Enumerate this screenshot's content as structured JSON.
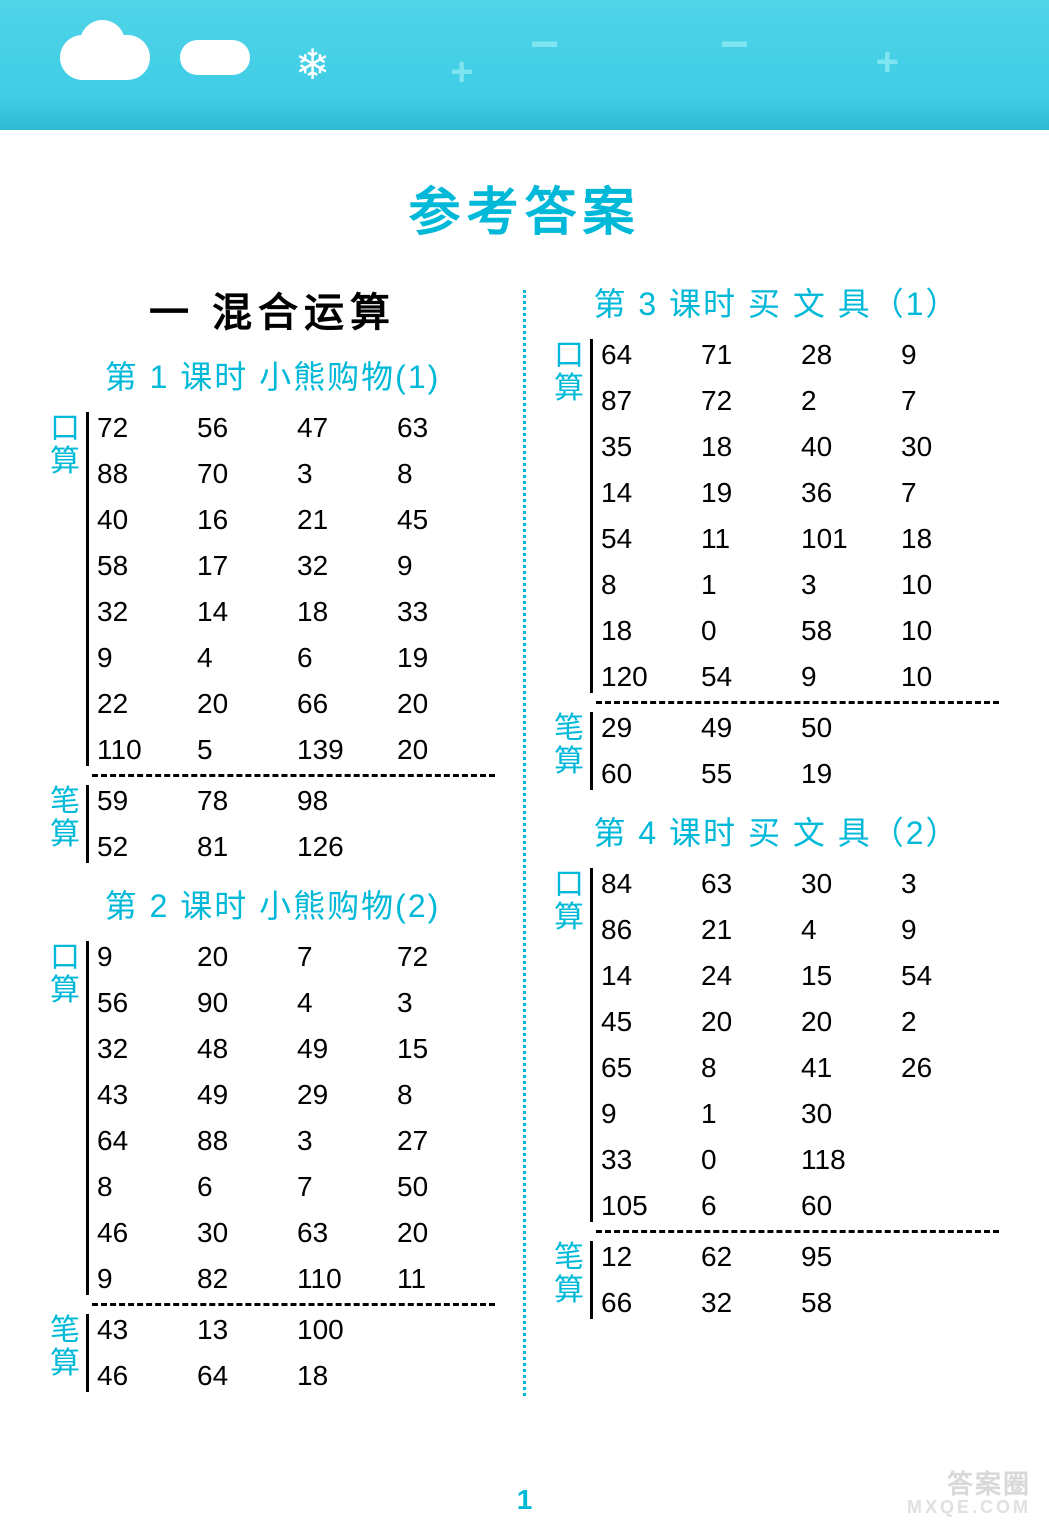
{
  "colors": {
    "accent": "#00b8d8",
    "banner_bg_top": "#4fd4e8",
    "banner_bg_bottom": "#2fb8d2",
    "text": "#000000",
    "watermark": "#d8d8d8",
    "background": "#ffffff"
  },
  "typography": {
    "title_fontsize": 52,
    "lesson_fontsize": 32,
    "cell_fontsize": 28,
    "side_label_fontsize": 30
  },
  "page": {
    "title": "参考答案",
    "unit_title": "一   混合运算",
    "page_number": "1",
    "watermark_main": "答案圈",
    "watermark_sub": "MXQE.COM"
  },
  "labels": {
    "kousuan": "口算",
    "bisuan": "笔算"
  },
  "lessons": {
    "l1": {
      "title": "第 1 课时   小熊购物(1)",
      "kousuan": [
        [
          "72",
          "56",
          "47",
          "63"
        ],
        [
          "88",
          "70",
          "3",
          "8"
        ],
        [
          "40",
          "16",
          "21",
          "45"
        ],
        [
          "58",
          "17",
          "32",
          "9"
        ],
        [
          "32",
          "14",
          "18",
          "33"
        ],
        [
          "9",
          "4",
          "6",
          "19"
        ],
        [
          "22",
          "20",
          "66",
          "20"
        ],
        [
          "110",
          "5",
          "139",
          "20"
        ]
      ],
      "bisuan": [
        [
          "59",
          "78",
          "98",
          ""
        ],
        [
          "52",
          "81",
          "126",
          ""
        ]
      ]
    },
    "l2": {
      "title": "第 2 课时   小熊购物(2)",
      "kousuan": [
        [
          "9",
          "20",
          "7",
          "72"
        ],
        [
          "56",
          "90",
          "4",
          "3"
        ],
        [
          "32",
          "48",
          "49",
          "15"
        ],
        [
          "43",
          "49",
          "29",
          "8"
        ],
        [
          "64",
          "88",
          "3",
          "27"
        ],
        [
          "8",
          "6",
          "7",
          "50"
        ],
        [
          "46",
          "30",
          "63",
          "20"
        ],
        [
          "9",
          "82",
          "110",
          "11"
        ]
      ],
      "bisuan": [
        [
          "43",
          "13",
          "100",
          ""
        ],
        [
          "46",
          "64",
          "18",
          ""
        ]
      ]
    },
    "l3": {
      "title": "第 3 课时   买 文 具（1）",
      "kousuan": [
        [
          "64",
          "71",
          "28",
          "9"
        ],
        [
          "87",
          "72",
          "2",
          "7"
        ],
        [
          "35",
          "18",
          "40",
          "30"
        ],
        [
          "14",
          "19",
          "36",
          "7"
        ],
        [
          "54",
          "11",
          "101",
          "18"
        ],
        [
          "8",
          "1",
          "3",
          "10"
        ],
        [
          "18",
          "0",
          "58",
          "10"
        ],
        [
          "120",
          "54",
          "9",
          "10"
        ]
      ],
      "bisuan": [
        [
          "29",
          "49",
          "50",
          ""
        ],
        [
          "60",
          "55",
          "19",
          ""
        ]
      ]
    },
    "l4": {
      "title": "第 4 课时   买 文 具（2）",
      "kousuan": [
        [
          "84",
          "63",
          "30",
          "3"
        ],
        [
          "86",
          "21",
          "4",
          "9"
        ],
        [
          "14",
          "24",
          "15",
          "54"
        ],
        [
          "45",
          "20",
          "20",
          "2"
        ],
        [
          "65",
          "8",
          "41",
          "26"
        ],
        [
          "9",
          "1",
          "30",
          ""
        ],
        [
          "33",
          "0",
          "118",
          ""
        ],
        [
          "105",
          "6",
          "60",
          ""
        ]
      ],
      "bisuan": [
        [
          "12",
          "62",
          "95",
          ""
        ],
        [
          "66",
          "32",
          "58",
          ""
        ]
      ]
    }
  }
}
